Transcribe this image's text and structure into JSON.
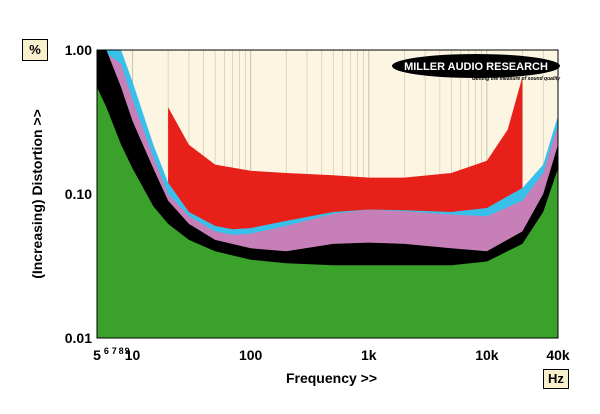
{
  "chart_data": {
    "type": "area",
    "xlabel": "Frequency >>",
    "ylabel": "(Increasing) Distortion >>",
    "x_unit": "Hz",
    "y_unit": "%",
    "x_scale": "log",
    "y_scale": "log",
    "xlim": [
      5,
      40000
    ],
    "ylim": [
      0.01,
      1.0
    ],
    "x_ticks": [
      {
        "value": 5,
        "label": "5"
      },
      {
        "value": 10,
        "label": "10"
      },
      {
        "value": 100,
        "label": "100"
      },
      {
        "value": 1000,
        "label": "1k"
      },
      {
        "value": 10000,
        "label": "10k"
      },
      {
        "value": 40000,
        "label": "40k"
      }
    ],
    "y_ticks": [
      {
        "value": 1.0,
        "label": "1.00"
      },
      {
        "value": 0.1,
        "label": "0.10"
      },
      {
        "value": 0.01,
        "label": "0.01"
      }
    ],
    "series": [
      {
        "color": "#e8201a",
        "x": [
          20,
          30,
          50,
          100,
          200,
          500,
          1000,
          2000,
          5000,
          10000,
          15000,
          20000
        ],
        "values": [
          0.4,
          0.22,
          0.16,
          0.145,
          0.14,
          0.135,
          0.13,
          0.13,
          0.14,
          0.17,
          0.28,
          0.65
        ]
      },
      {
        "color": "#38c0ea",
        "x": [
          6,
          8,
          10,
          15,
          20,
          30,
          50,
          70,
          100,
          200,
          500,
          1000,
          2000,
          5000,
          10000,
          20000,
          30000,
          40000
        ],
        "values": [
          1.0,
          1.0,
          0.6,
          0.22,
          0.12,
          0.075,
          0.06,
          0.057,
          0.058,
          0.065,
          0.075,
          0.078,
          0.077,
          0.075,
          0.08,
          0.11,
          0.16,
          0.35
        ]
      },
      {
        "color": "#c77fb8",
        "x": [
          6,
          8,
          10,
          15,
          20,
          30,
          50,
          70,
          100,
          200,
          500,
          1000,
          2000,
          5000,
          10000,
          20000,
          30000,
          40000
        ],
        "values": [
          0.95,
          0.8,
          0.45,
          0.18,
          0.1,
          0.07,
          0.055,
          0.052,
          0.053,
          0.06,
          0.073,
          0.078,
          0.076,
          0.072,
          0.07,
          0.09,
          0.14,
          0.3
        ]
      },
      {
        "color": "#000000",
        "x": [
          5,
          6,
          8,
          10,
          15,
          20,
          30,
          50,
          100,
          200,
          500,
          1000,
          2000,
          5000,
          10000,
          20000,
          30000,
          40000
        ],
        "values": [
          1.0,
          1.0,
          0.55,
          0.32,
          0.15,
          0.09,
          0.062,
          0.048,
          0.042,
          0.04,
          0.045,
          0.046,
          0.045,
          0.042,
          0.04,
          0.055,
          0.1,
          0.22
        ]
      },
      {
        "color": "#3aa22a",
        "x": [
          5,
          6,
          8,
          10,
          15,
          20,
          30,
          50,
          100,
          200,
          500,
          1000,
          2000,
          5000,
          10000,
          20000,
          30000,
          40000
        ],
        "values": [
          0.55,
          0.4,
          0.22,
          0.15,
          0.082,
          0.062,
          0.048,
          0.04,
          0.035,
          0.033,
          0.032,
          0.032,
          0.032,
          0.032,
          0.034,
          0.045,
          0.075,
          0.15
        ]
      }
    ],
    "logo": {
      "line1": "MILLER AUDIO RESEARCH",
      "line2": "Getting the measure of sound quality"
    },
    "colors": {
      "plot_background": "#fbf5e2",
      "grid": "#c9c3ad",
      "outer_background": "#ffffff"
    },
    "grid": true
  }
}
